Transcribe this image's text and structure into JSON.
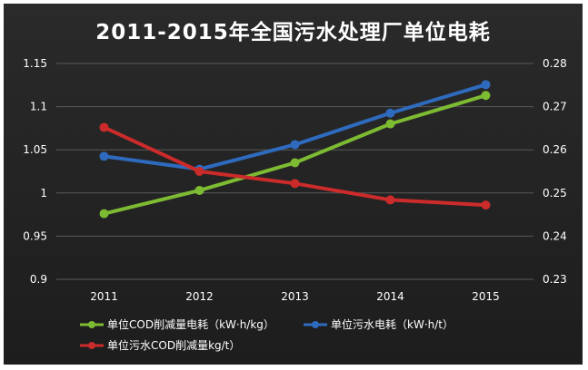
{
  "chart_data": {
    "type": "line",
    "title": "2011-2015年全国污水处理厂单位电耗",
    "categories": [
      "2011",
      "2012",
      "2013",
      "2014",
      "2015"
    ],
    "left_axis": {
      "ylim": [
        0.9,
        1.15
      ],
      "ticks": [
        "0.9",
        "0.95",
        "1",
        "1.05",
        "1.1",
        "1.15"
      ]
    },
    "right_axis": {
      "ylim": [
        0.23,
        0.28
      ],
      "ticks": [
        "0.23",
        "0.24",
        "0.25",
        "0.26",
        "0.27",
        "0.28"
      ]
    },
    "grid": true,
    "legend_position": "bottom",
    "series": [
      {
        "name": "单位COD削减量电耗（kW·h/kg）",
        "axis": "left",
        "color": "#7dbb32",
        "values": [
          0.976,
          1.003,
          1.035,
          1.08,
          1.113
        ]
      },
      {
        "name": "单位污水电耗（kW·h/t）",
        "axis": "right",
        "color": "#2e6bbf",
        "values": [
          0.2585,
          0.2555,
          0.2612,
          0.2685,
          0.2751
        ]
      },
      {
        "name": "单位污水COD削减量kg/t）",
        "axis": "left",
        "color": "#cc2b2b",
        "values": [
          1.076,
          1.025,
          1.011,
          0.992,
          0.986
        ]
      }
    ]
  }
}
